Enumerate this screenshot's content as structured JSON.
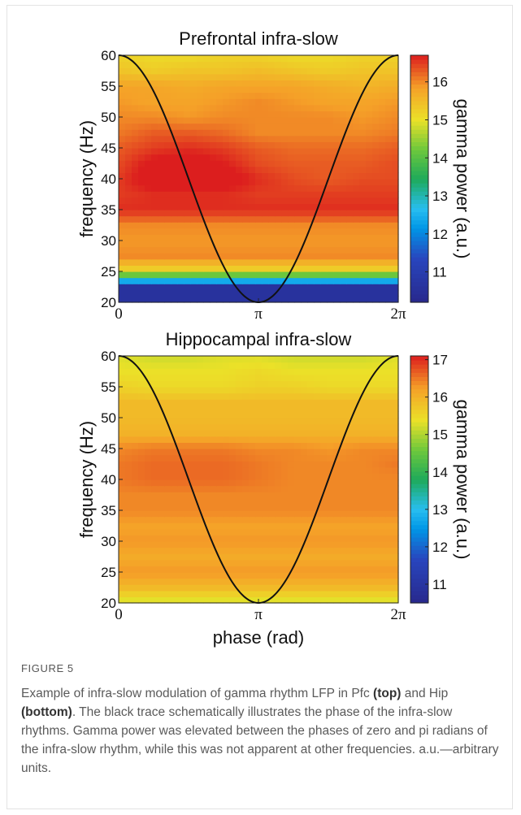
{
  "chart_data": [
    {
      "type": "heatmap",
      "title": "Prefrontal infra-slow",
      "xlabel": "",
      "ylabel": "frequency (Hz)",
      "colorbar_label": "gamma power (a.u.)",
      "x_range": [
        0,
        6.2832
      ],
      "xticks": [
        "0",
        "π",
        "2π"
      ],
      "ylim": [
        20,
        60
      ],
      "yticks": [
        "20",
        "25",
        "30",
        "35",
        "40",
        "45",
        "50",
        "55",
        "60"
      ],
      "clim": [
        10.2,
        16.7
      ],
      "colorbar_ticks": [
        "11",
        "12",
        "13",
        "14",
        "15",
        "16"
      ],
      "overlay_trace": "cosine phase of infra-slow rhythm (black)",
      "grid_phase": [
        0,
        0.7854,
        1.5708,
        2.3562,
        3.1416,
        3.927,
        4.7124,
        5.4978,
        6.2832
      ],
      "grid_freq": [
        20,
        22.5,
        25,
        27.5,
        30,
        32.5,
        35,
        37.5,
        40,
        42.5,
        45,
        47.5,
        50,
        52.5,
        55,
        57.5,
        60
      ],
      "z": [
        [
          10.6,
          10.6,
          10.6,
          10.6,
          10.6,
          10.6,
          10.6,
          10.6,
          10.6
        ],
        [
          10.6,
          10.6,
          10.6,
          10.6,
          10.6,
          10.6,
          10.6,
          10.6,
          10.6
        ],
        [
          15.1,
          15.1,
          15.1,
          15.1,
          15.1,
          15.1,
          15.1,
          15.1,
          15.1
        ],
        [
          16.0,
          16.0,
          16.0,
          16.0,
          16.0,
          16.0,
          16.0,
          16.0,
          16.0
        ],
        [
          15.9,
          15.9,
          15.9,
          15.9,
          15.9,
          15.9,
          15.9,
          15.9,
          15.9
        ],
        [
          16.0,
          16.0,
          16.0,
          16.0,
          16.0,
          16.0,
          16.0,
          16.0,
          16.0
        ],
        [
          16.6,
          16.6,
          16.6,
          16.6,
          16.6,
          16.6,
          16.6,
          16.6,
          16.6
        ],
        [
          16.5,
          16.6,
          16.6,
          16.6,
          16.5,
          16.5,
          16.5,
          16.5,
          16.5
        ],
        [
          16.5,
          16.9,
          17.0,
          16.9,
          16.6,
          16.4,
          16.3,
          16.4,
          16.4
        ],
        [
          16.4,
          16.8,
          16.9,
          16.7,
          16.4,
          16.3,
          16.3,
          16.3,
          16.4
        ],
        [
          16.3,
          16.5,
          16.6,
          16.5,
          16.3,
          16.2,
          16.2,
          16.2,
          16.3
        ],
        [
          16.1,
          16.3,
          16.3,
          16.2,
          16.0,
          16.0,
          16.0,
          16.0,
          16.1
        ],
        [
          16.0,
          16.0,
          15.9,
          16.0,
          16.0,
          16.0,
          16.0,
          15.9,
          16.0
        ],
        [
          15.9,
          15.8,
          15.8,
          15.9,
          16.0,
          15.9,
          15.8,
          15.8,
          15.9
        ],
        [
          15.8,
          15.8,
          15.7,
          15.8,
          15.8,
          15.8,
          15.7,
          15.6,
          15.7
        ],
        [
          15.4,
          15.3,
          15.4,
          15.4,
          15.5,
          15.4,
          15.3,
          15.4,
          15.4
        ],
        [
          15.2,
          15.1,
          15.1,
          15.2,
          15.2,
          15.1,
          15.1,
          15.2,
          15.2
        ]
      ]
    },
    {
      "type": "heatmap",
      "title": "Hippocampal infra-slow",
      "xlabel": "phase (rad)",
      "ylabel": "frequency (Hz)",
      "colorbar_label": "gamma power (a.u.)",
      "x_range": [
        0,
        6.2832
      ],
      "xticks": [
        "0",
        "π",
        "2π"
      ],
      "ylim": [
        20,
        60
      ],
      "yticks": [
        "20",
        "25",
        "30",
        "35",
        "40",
        "45",
        "50",
        "55",
        "60"
      ],
      "clim": [
        10.5,
        17.1
      ],
      "colorbar_ticks": [
        "11",
        "12",
        "13",
        "14",
        "15",
        "16",
        "17"
      ],
      "overlay_trace": "cosine phase of infra-slow rhythm (black)",
      "grid_phase": [
        0,
        0.7854,
        1.5708,
        2.3562,
        3.1416,
        3.927,
        4.7124,
        5.4978,
        6.2832
      ],
      "grid_freq": [
        20,
        22.5,
        25,
        27.5,
        30,
        32.5,
        35,
        37.5,
        40,
        42.5,
        45,
        47.5,
        50,
        52.5,
        55,
        57.5,
        60
      ],
      "z": [
        [
          15.2,
          15.2,
          15.2,
          15.2,
          15.2,
          15.2,
          15.2,
          15.2,
          15.2
        ],
        [
          15.9,
          15.9,
          15.9,
          15.9,
          15.9,
          15.9,
          15.9,
          15.9,
          15.9
        ],
        [
          16.3,
          16.3,
          16.3,
          16.3,
          16.3,
          16.3,
          16.3,
          16.3,
          16.3
        ],
        [
          16.1,
          16.1,
          16.1,
          16.1,
          16.1,
          16.1,
          16.1,
          16.1,
          16.1
        ],
        [
          16.3,
          16.3,
          16.3,
          16.3,
          16.3,
          16.3,
          16.3,
          16.3,
          16.3
        ],
        [
          16.2,
          16.2,
          16.2,
          16.2,
          16.2,
          16.2,
          16.2,
          16.2,
          16.2
        ],
        [
          16.4,
          16.4,
          16.4,
          16.4,
          16.4,
          16.4,
          16.4,
          16.4,
          16.4
        ],
        [
          16.4,
          16.4,
          16.4,
          16.4,
          16.4,
          16.4,
          16.4,
          16.4,
          16.4
        ],
        [
          16.5,
          16.6,
          16.6,
          16.6,
          16.5,
          16.4,
          16.4,
          16.4,
          16.4
        ],
        [
          16.5,
          16.6,
          16.6,
          16.6,
          16.5,
          16.4,
          16.4,
          16.4,
          16.5
        ],
        [
          16.4,
          16.5,
          16.5,
          16.5,
          16.4,
          16.4,
          16.3,
          16.4,
          16.4
        ],
        [
          16.0,
          16.0,
          16.0,
          16.0,
          16.0,
          16.0,
          16.0,
          16.0,
          16.0
        ],
        [
          15.9,
          15.9,
          15.9,
          15.9,
          15.9,
          15.9,
          15.9,
          15.9,
          15.9
        ],
        [
          15.9,
          15.9,
          15.9,
          15.9,
          15.9,
          15.9,
          15.9,
          15.9,
          15.9
        ],
        [
          15.6,
          15.5,
          15.5,
          15.5,
          15.6,
          15.6,
          15.5,
          15.5,
          15.5
        ],
        [
          15.4,
          15.4,
          15.4,
          15.4,
          15.5,
          15.4,
          15.4,
          15.4,
          15.4
        ],
        [
          15.3,
          15.2,
          15.2,
          15.3,
          15.3,
          15.2,
          15.2,
          15.2,
          15.3
        ]
      ]
    }
  ],
  "caption": {
    "label": "FIGURE 5",
    "text_1": "Example of infra-slow modulation of gamma rhythm LFP in Pfc ",
    "bold_1": "(top)",
    "text_2": " and Hip ",
    "bold_2": "(bottom)",
    "text_3": ". The black trace schematically illustrates the phase of the infra-slow rhythms. Gamma power was elevated between the phases of zero and pi radians of the infra-slow rhythm, while this was not apparent at other frequencies. a.u.—arbitrary units."
  }
}
